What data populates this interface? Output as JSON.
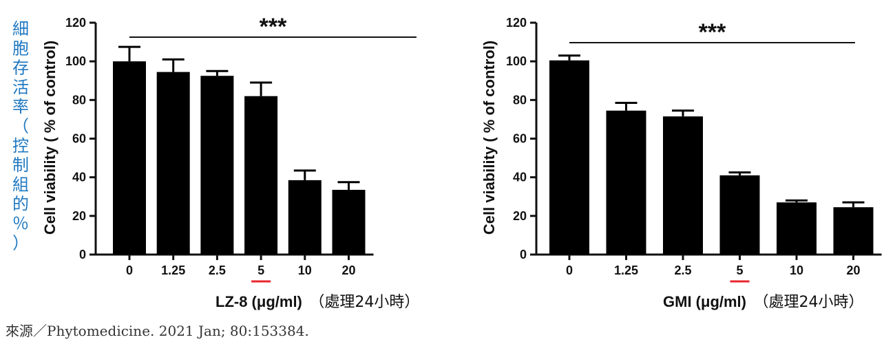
{
  "side_annotation": "細胞存活率（控制組的％）",
  "source_note": "來源／Phytomedicine. 2021 Jan; 80:153384.",
  "highlight_color": "#e8262d",
  "annotation_color": "#1f78c1",
  "chart_data": [
    {
      "type": "bar",
      "ylabel": "Cell viability ( % of control)",
      "xlabel": "LZ-8 (μg/ml)",
      "xlabel_suffix": "（處理24小時）",
      "categories": [
        "0",
        "1.25",
        "2.5",
        "5",
        "10",
        "20"
      ],
      "values": [
        100,
        94.5,
        92.5,
        82,
        38.5,
        33.5
      ],
      "errors": [
        7.5,
        6.5,
        2.5,
        7,
        5,
        4
      ],
      "ylim": [
        0,
        120
      ],
      "yticks": [
        "0",
        "20",
        "40",
        "60",
        "80",
        "100",
        "120"
      ],
      "significance": "***",
      "highlighted_category": "5"
    },
    {
      "type": "bar",
      "ylabel": "Cell viability ( % of control)",
      "xlabel": "GMI (μg/ml)",
      "xlabel_suffix": "（處理24小時）",
      "categories": [
        "0",
        "1.25",
        "2.5",
        "5",
        "10",
        "20"
      ],
      "values": [
        100.5,
        74.5,
        71.5,
        41,
        27,
        24.5
      ],
      "errors": [
        2.5,
        4,
        3,
        1.5,
        1,
        2.5
      ],
      "ylim": [
        0,
        120
      ],
      "yticks": [
        "0",
        "20",
        "40",
        "60",
        "80",
        "100",
        "120"
      ],
      "significance": "***",
      "highlighted_category": "5"
    }
  ]
}
